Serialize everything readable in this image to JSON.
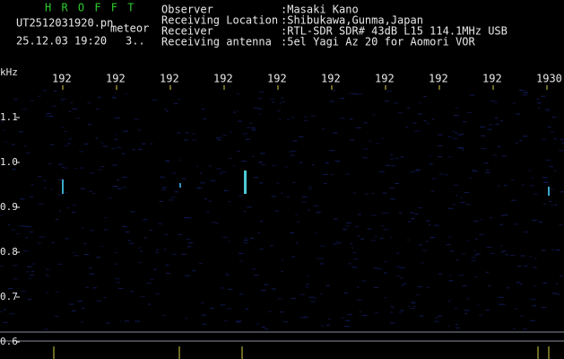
{
  "header": {
    "app": "H R O F F T",
    "file": "UT2512031920.pn",
    "mode": "meteor",
    "datetime": "25.12.03 19:20",
    "extra": "3..",
    "fields": [
      {
        "label": "Observer",
        "value": ":Masaki Kano"
      },
      {
        "label": "Receiving Location",
        "value": ":Shibukawa,Gunma,Japan"
      },
      {
        "label": "Receiver",
        "value": ":RTL-SDR SDR# 43dB L15 114.1MHz USB"
      },
      {
        "label": "Receiving antenna",
        "value": ":5el Yagi Az 20 for Aomori VOR"
      }
    ]
  },
  "axes": {
    "y_unit": "kHz",
    "y_labels": [
      "1.1",
      "1.0",
      "0.9",
      "0.8",
      "0.7",
      "0.6"
    ],
    "x_labels": [
      "192",
      "192",
      "192",
      "192",
      "192",
      "192",
      "192",
      "192",
      "192",
      "1930"
    ]
  }
}
